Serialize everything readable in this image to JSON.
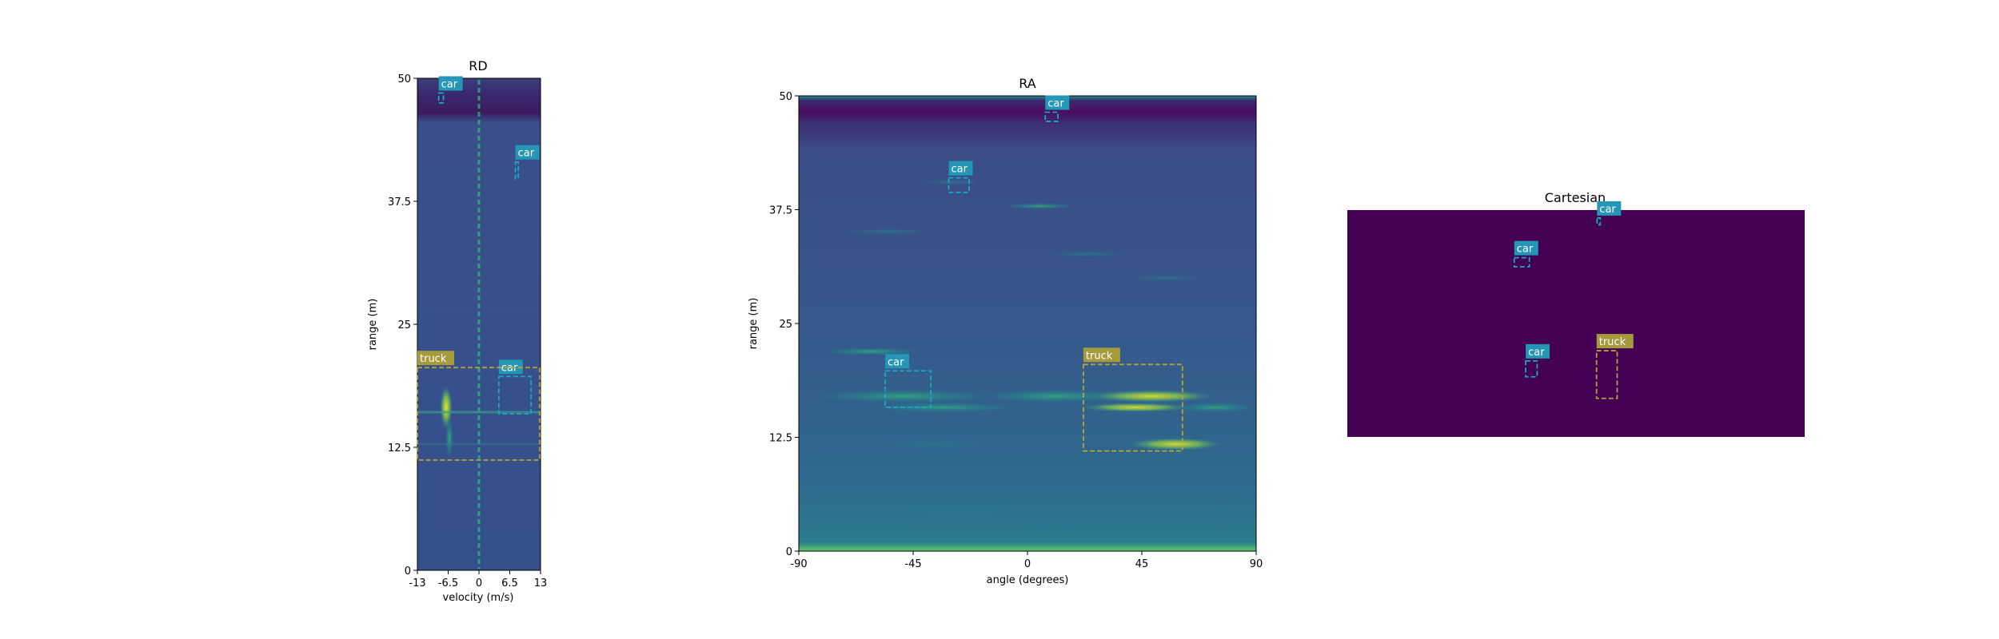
{
  "colors": {
    "car": "#1aa7c4",
    "truck": "#b3a13a",
    "car_label_bg": "#2496b6",
    "truck_label_bg": "#a59a3c",
    "viridis_dark": "#440154",
    "viridis_mid": "#3b528b",
    "viridis_teal": "#21918c",
    "viridis_green": "#5ec962",
    "viridis_yellow": "#fde725"
  },
  "chart_data": [
    {
      "type": "heatmap",
      "title": "RD",
      "xlabel": "velocity (m/s)",
      "ylabel": "range (m)",
      "xlim": [
        -13,
        13
      ],
      "ylim": [
        0,
        50
      ],
      "xticks": [
        "-13",
        "-6.5",
        "0",
        "6.5",
        "13"
      ],
      "xtick_values": [
        -13,
        -6.5,
        0,
        6.5,
        13
      ],
      "yticks": [
        "0",
        "12.5",
        "25",
        "37.5",
        "50"
      ],
      "ytick_values": [
        0,
        12.5,
        25,
        37.5,
        50
      ],
      "colormap": "viridis",
      "boxes": [
        {
          "label": "car",
          "x": [
            -8.5,
            -7.5
          ],
          "y": [
            47.5,
            48.5
          ]
        },
        {
          "label": "car",
          "x": [
            7.7,
            8.3
          ],
          "y": [
            39.8,
            41.5
          ]
        },
        {
          "label": "car",
          "x": [
            4.2,
            11.0
          ],
          "y": [
            15.9,
            19.7
          ]
        },
        {
          "label": "truck",
          "x": [
            -13,
            12.8
          ],
          "y": [
            11.2,
            20.6
          ]
        }
      ]
    },
    {
      "type": "heatmap",
      "title": "RA",
      "xlabel": "angle (degrees)",
      "ylabel": "range (m)",
      "xlim": [
        -90,
        90
      ],
      "ylim": [
        0,
        50
      ],
      "xticks": [
        "-90",
        "-45",
        "0",
        "45",
        "90"
      ],
      "xtick_values": [
        -90,
        -45,
        0,
        45,
        90
      ],
      "yticks": [
        "0",
        "12.5",
        "25",
        "37.5",
        "50"
      ],
      "ytick_values": [
        0,
        12.5,
        25,
        37.5,
        50
      ],
      "colormap": "viridis",
      "boxes": [
        {
          "label": "car",
          "x": [
            7,
            12
          ],
          "y": [
            47.2,
            48.2
          ]
        },
        {
          "label": "car",
          "x": [
            -31,
            -23
          ],
          "y": [
            39.4,
            41.0
          ]
        },
        {
          "label": "car",
          "x": [
            -56,
            -38
          ],
          "y": [
            15.8,
            19.8
          ]
        },
        {
          "label": "truck",
          "x": [
            22,
            61
          ],
          "y": [
            11.0,
            20.5
          ]
        }
      ]
    },
    {
      "type": "heatmap",
      "title": "Cartesian",
      "colormap": "viridis",
      "boxes": [
        {
          "label": "car",
          "x": [
            0.546,
            0.553
          ],
          "y": [
            0.035,
            0.065
          ]
        },
        {
          "label": "car",
          "x": [
            0.365,
            0.398
          ],
          "y": [
            0.21,
            0.25
          ]
        },
        {
          "label": "car",
          "x": [
            0.39,
            0.415
          ],
          "y": [
            0.665,
            0.735
          ]
        },
        {
          "label": "truck",
          "x": [
            0.545,
            0.59
          ],
          "y": [
            0.62,
            0.83
          ]
        }
      ]
    }
  ]
}
